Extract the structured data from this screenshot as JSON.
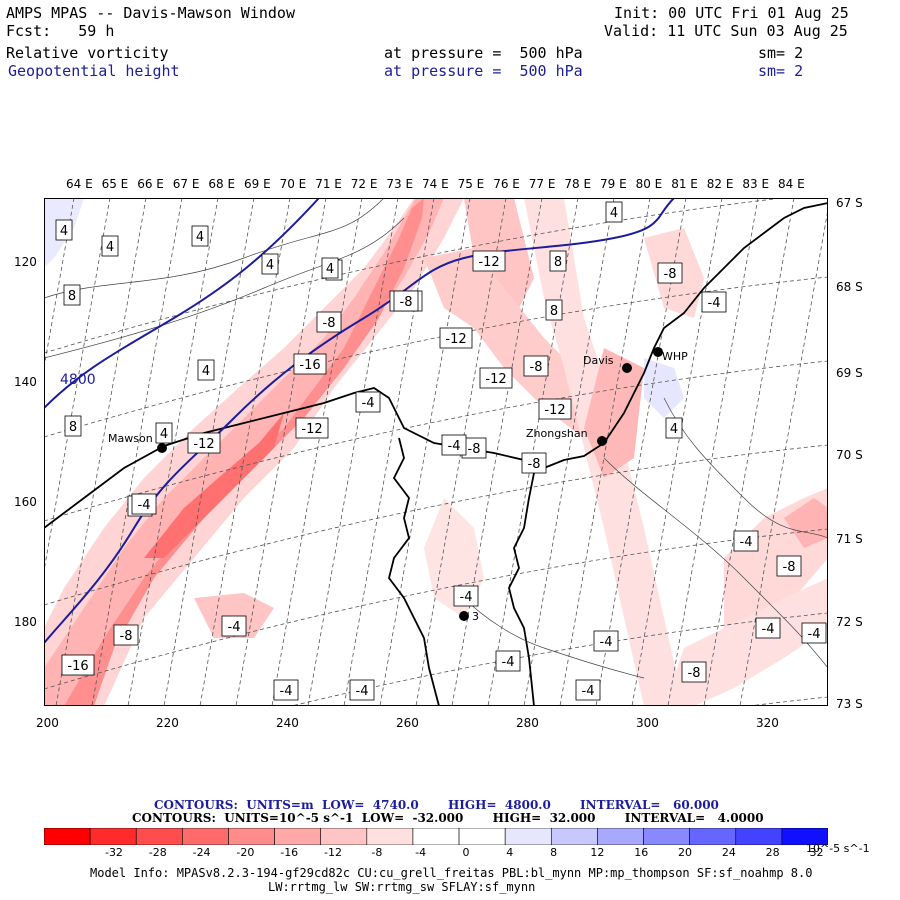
{
  "header": {
    "left_line1": "AMPS MPAS -- Davis-Mawson Window",
    "left_line2": "Fcst:   59 h",
    "right_line1": "Init: 00 UTC Fri 01 Aug 25",
    "right_line2": "Valid: 11 UTC Sun 03 Aug 25",
    "field1": {
      "name": "Relative vorticity",
      "pressure": "at pressure =  500 hPa",
      "sm": "sm= 2"
    },
    "field2": {
      "name": "Geopotential height",
      "pressure": "at pressure =  500 hPa",
      "sm": "sm= 2"
    }
  },
  "map": {
    "lon_labels": [
      "64 E",
      "65 E",
      "66 E",
      "67 E",
      "68 E",
      "69 E",
      "70 E",
      "71 E",
      "72 E",
      "73 E",
      "74 E",
      "75 E",
      "76 E",
      "77 E",
      "78 E",
      "79 E",
      "80 E",
      "81 E",
      "82 E",
      "83 E",
      "84 E"
    ],
    "lat_labels": [
      "67 S",
      "68 S",
      "69 S",
      "70 S",
      "71 S",
      "72 S",
      "73 S"
    ],
    "x_ticks": [
      "200",
      "220",
      "240",
      "260",
      "280",
      "300",
      "320"
    ],
    "y_ticks": [
      "120",
      "140",
      "160",
      "180"
    ],
    "stations": [
      {
        "name": "Mawson"
      },
      {
        "name": "Davis"
      },
      {
        "name": "WHP"
      },
      {
        "name": "Zhongshan"
      },
      {
        "name": "3"
      }
    ],
    "height_contour_label": "4800",
    "vorticity_labels": [
      "4",
      "4",
      "4",
      "4",
      "4",
      "4",
      "8",
      "8",
      "8",
      "8",
      "4",
      "4",
      "4",
      "4",
      "-12",
      "-12",
      "-8",
      "-16",
      "-12",
      "-12",
      "-8",
      "-12",
      "-8",
      "-12",
      "-8",
      "-4",
      "-4",
      "-4",
      "-8",
      "-4",
      "-12",
      "-8",
      "-16",
      "-8",
      "-4",
      "-4",
      "-4",
      "-4",
      "-4",
      "-4",
      "-4",
      "-4",
      "-8",
      "-4",
      "-8",
      "-4",
      "-4"
    ]
  },
  "footer": {
    "contours1": "CONTOURS:  UNITS=m  LOW=  4740.0       HIGH=  4800.0       INTERVAL=   60.000",
    "contours2": "CONTOURS:  UNITS=10^-5 s^-1  LOW=  -32.000       HIGH=  32.000       INTERVAL=   4.0000",
    "colorbar_ticks": [
      "-32",
      "-28",
      "-24",
      "-20",
      "-16",
      "-12",
      "-8",
      "-4",
      "0",
      "4",
      "8",
      "12",
      "16",
      "20",
      "24",
      "28",
      "32"
    ],
    "colorbar_unit": "10^-5 s^-1",
    "colorbar_colors": [
      "#ff0000",
      "#ff2a2a",
      "#ff4d4d",
      "#ff6b6b",
      "#ff8b8b",
      "#ffa8a8",
      "#ffc4c4",
      "#ffe0e0",
      "#ffffff",
      "#ffffff",
      "#e6e6ff",
      "#c8c8ff",
      "#a8a8ff",
      "#8888ff",
      "#6666ff",
      "#4242ff",
      "#1010ff"
    ],
    "model_line1": "Model Info: MPASv8.2.3-194-gf29cd82c CU:cu_grell_freitas PBL:bl_mynn MP:mp_thompson SF:sf_noahmp 8.0",
    "model_line2": "LW:rrtmg_lw SW:rrtmg_sw SFLAY:sf_mynn"
  }
}
